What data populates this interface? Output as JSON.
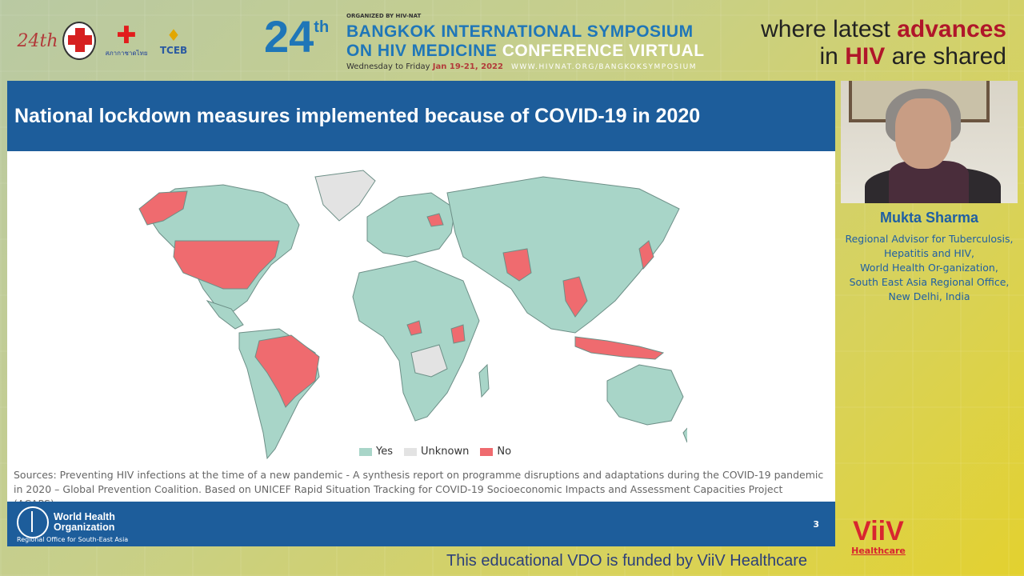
{
  "colors": {
    "yes": "#a8d5c8",
    "unknown": "#e3e3e3",
    "no": "#ef6b6f",
    "slide_blue": "#1d5d9b"
  },
  "header": {
    "logo_24": "24th",
    "logo_hiv": "HIV-NAT",
    "logo_redcross": "สภากาชาดไทย",
    "logo_tceb": "TCEB",
    "symposium_number": "24",
    "symposium_sup": "th",
    "organized_by": "ORGANIZED BY HIV-NAT",
    "title_line1": "BANGKOK INTERNATIONAL SYMPOSIUM",
    "title_line2_blue": "ON HIV MEDICINE",
    "title_line2_white": "CONFERENCE VIRTUAL",
    "date_prefix": "Wednesday to Friday",
    "date": "Jan 19-21, 2022",
    "url": "WWW.HIVNAT.ORG/BANGKOKSYMPOSIUM",
    "tagline_1a": "where latest",
    "tagline_1b": "advances",
    "tagline_2a": "in",
    "tagline_2b": "HIV",
    "tagline_2c": "are shared"
  },
  "slide": {
    "title": "National lockdown measures implemented because of COVID-19 in 2020",
    "legend": [
      {
        "label": "Yes",
        "color": "#a8d5c8"
      },
      {
        "label": "Unknown",
        "color": "#e3e3e3"
      },
      {
        "label": "No",
        "color": "#ef6b6f"
      }
    ],
    "sources": "Sources: Preventing HIV infections at the time of a new pandemic - A synthesis report on programme disruptions and adaptations during the COVID-19 pandemic in 2020 – Global Prevention Coalition. Based on UNICEF Rapid Situation Tracking for COVID-19 Socioeconomic Impacts and Assessment Capacities Project (ACAPS).",
    "org_line1": "World Health",
    "org_line2": "Organization",
    "org_sub": "Regional Office for South-East Asia",
    "page_number": "3"
  },
  "speaker": {
    "name": "Mukta Sharma",
    "title_lines": [
      "Regional Advisor for Tuberculosis,",
      "Hepatitis and HIV,",
      "World Health Or-ganization,",
      "South East Asia Regional Office,",
      "New Delhi, India"
    ]
  },
  "footer": {
    "funding": "This educational VDO is funded by ViiV Healthcare",
    "viiv_logo": "ViiV",
    "viiv_sub": "Healthcare"
  }
}
